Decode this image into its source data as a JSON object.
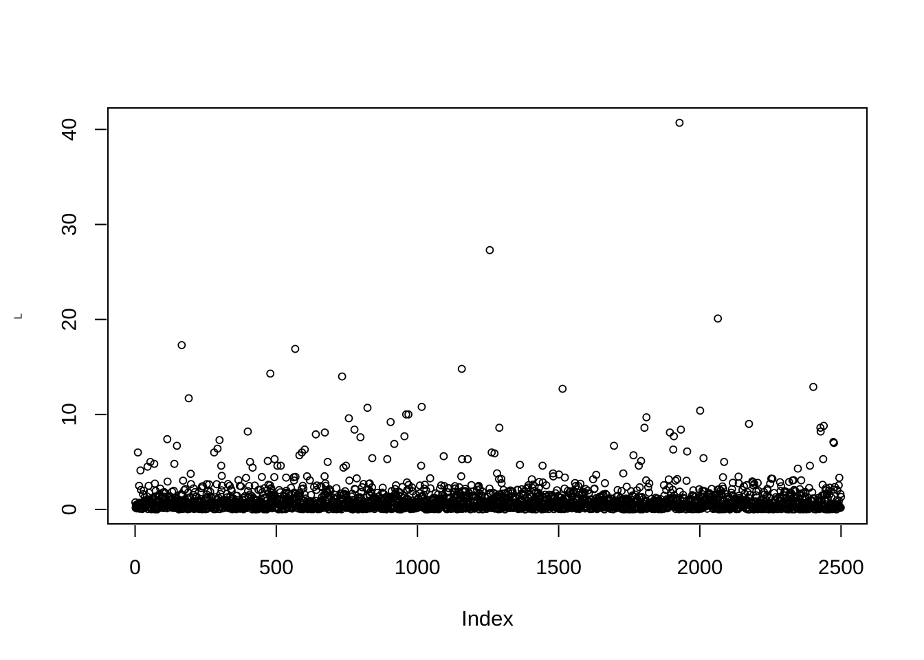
{
  "page": {
    "background_color": "#ffffff",
    "foreground_color": "#000000"
  },
  "chart_data": {
    "type": "scatter",
    "title": "",
    "xlabel": "Index",
    "ylabel": "L",
    "x_ticks": [
      0,
      500,
      1000,
      1500,
      2000,
      2500
    ],
    "y_ticks": [
      0,
      10,
      20,
      30,
      40
    ],
    "xlim": [
      1,
      2500
    ],
    "ylim": [
      0,
      40.7
    ],
    "n_points": 2500,
    "grid": false,
    "legend": "none",
    "marker": {
      "shape": "open-circle",
      "color": "#000000"
    },
    "notable_points": [
      [
        10,
        6.0
      ],
      [
        19,
        4.1
      ],
      [
        44,
        4.5
      ],
      [
        54,
        5.0
      ],
      [
        68,
        4.8
      ],
      [
        114,
        7.4
      ],
      [
        139,
        4.8
      ],
      [
        148,
        6.7
      ],
      [
        165,
        17.3
      ],
      [
        190,
        11.7
      ],
      [
        280,
        6.0
      ],
      [
        292,
        6.4
      ],
      [
        299,
        7.3
      ],
      [
        305,
        4.6
      ],
      [
        399,
        8.2
      ],
      [
        407,
        5.0
      ],
      [
        416,
        4.4
      ],
      [
        470,
        5.1
      ],
      [
        479,
        14.3
      ],
      [
        494,
        5.3
      ],
      [
        504,
        4.6
      ],
      [
        516,
        4.6
      ],
      [
        567,
        16.9
      ],
      [
        582,
        5.7
      ],
      [
        591,
        6.0
      ],
      [
        601,
        6.3
      ],
      [
        640,
        7.9
      ],
      [
        672,
        8.1
      ],
      [
        682,
        5.0
      ],
      [
        733,
        14.0
      ],
      [
        738,
        4.4
      ],
      [
        747,
        4.6
      ],
      [
        757,
        9.6
      ],
      [
        777,
        8.4
      ],
      [
        798,
        7.6
      ],
      [
        823,
        10.7
      ],
      [
        840,
        5.4
      ],
      [
        893,
        5.3
      ],
      [
        905,
        9.2
      ],
      [
        918,
        6.9
      ],
      [
        954,
        7.7
      ],
      [
        960,
        10.0
      ],
      [
        968,
        10.0
      ],
      [
        1013,
        4.6
      ],
      [
        1015,
        10.8
      ],
      [
        1093,
        5.6
      ],
      [
        1157,
        14.8
      ],
      [
        1158,
        5.3
      ],
      [
        1178,
        5.3
      ],
      [
        1256,
        27.3
      ],
      [
        1263,
        6.0
      ],
      [
        1273,
        5.9
      ],
      [
        1290,
        8.6
      ],
      [
        1363,
        4.7
      ],
      [
        1443,
        4.6
      ],
      [
        1514,
        12.7
      ],
      [
        1696,
        6.7
      ],
      [
        1765,
        5.7
      ],
      [
        1784,
        4.6
      ],
      [
        1792,
        5.1
      ],
      [
        1804,
        8.6
      ],
      [
        1811,
        9.7
      ],
      [
        1894,
        8.1
      ],
      [
        1906,
        6.3
      ],
      [
        1908,
        7.7
      ],
      [
        1928,
        40.7
      ],
      [
        1933,
        8.4
      ],
      [
        1955,
        6.1
      ],
      [
        2001,
        10.4
      ],
      [
        2013,
        5.4
      ],
      [
        2064,
        20.1
      ],
      [
        2086,
        5.0
      ],
      [
        2174,
        9.0
      ],
      [
        2347,
        4.3
      ],
      [
        2390,
        4.6
      ],
      [
        2402,
        12.9
      ],
      [
        2427,
        8.6
      ],
      [
        2428,
        8.2
      ],
      [
        2437,
        5.3
      ],
      [
        2439,
        8.8
      ],
      [
        2473,
        7.1
      ],
      [
        2475,
        7.0
      ]
    ],
    "bulk_points_model": {
      "note": "remaining unlabeled points form a dense band near y=0; approximated by an exponential distribution",
      "distribution": "exponential",
      "mean": 0.8,
      "truncate_at": 4.0,
      "seed": 1234567
    }
  }
}
